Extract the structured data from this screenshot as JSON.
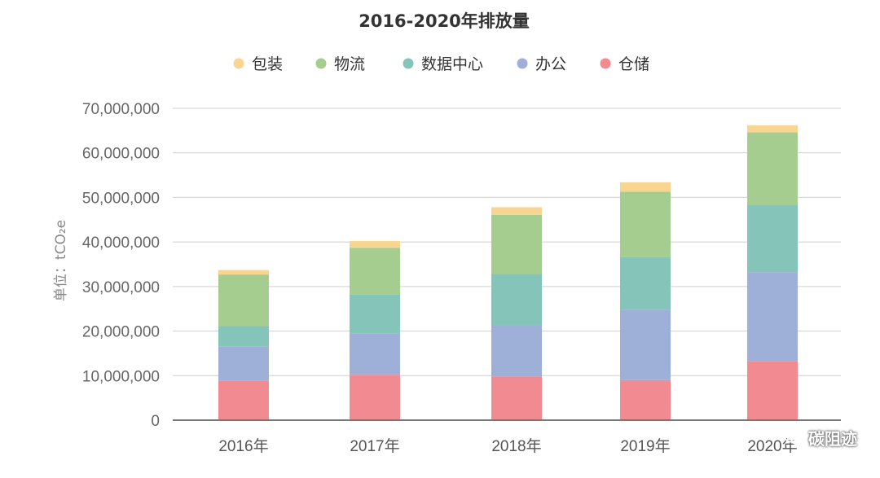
{
  "chart_data": {
    "type": "bar",
    "stacked": true,
    "title": "2016-2020年排放量",
    "ylabel": "单位：tCO₂e",
    "xlabel": "",
    "categories": [
      "2016年",
      "2017年",
      "2018年",
      "2019年",
      "2020年"
    ],
    "ylim": [
      0,
      70000000
    ],
    "yticks": [
      0,
      10000000,
      20000000,
      30000000,
      40000000,
      50000000,
      60000000,
      70000000
    ],
    "ytick_labels": [
      "0",
      "10,000,000",
      "20,000,000",
      "30,000,000",
      "40,000,000",
      "50,000,000",
      "60,000,000",
      "70,000,000"
    ],
    "grid": true,
    "legend_position": "top",
    "legend_order": [
      "包装",
      "物流",
      "数据中心",
      "办公",
      "仓储"
    ],
    "series": [
      {
        "name": "仓储",
        "color": "#f28a92",
        "values": [
          8800000,
          10200000,
          9800000,
          9000000,
          13200000
        ]
      },
      {
        "name": "办公",
        "color": "#9eafd8",
        "values": [
          7700000,
          9200000,
          11500000,
          15800000,
          20000000
        ]
      },
      {
        "name": "数据中心",
        "color": "#85c4b8",
        "values": [
          4600000,
          8800000,
          11500000,
          11800000,
          15200000
        ]
      },
      {
        "name": "物流",
        "color": "#a5cd90",
        "values": [
          11600000,
          10500000,
          13300000,
          14700000,
          16200000
        ]
      },
      {
        "name": "包装",
        "color": "#f9d592",
        "values": [
          1000000,
          1500000,
          1700000,
          2100000,
          1600000
        ]
      }
    ]
  },
  "watermark": {
    "text": "碳阻迹",
    "icon": "wechat-icon"
  }
}
